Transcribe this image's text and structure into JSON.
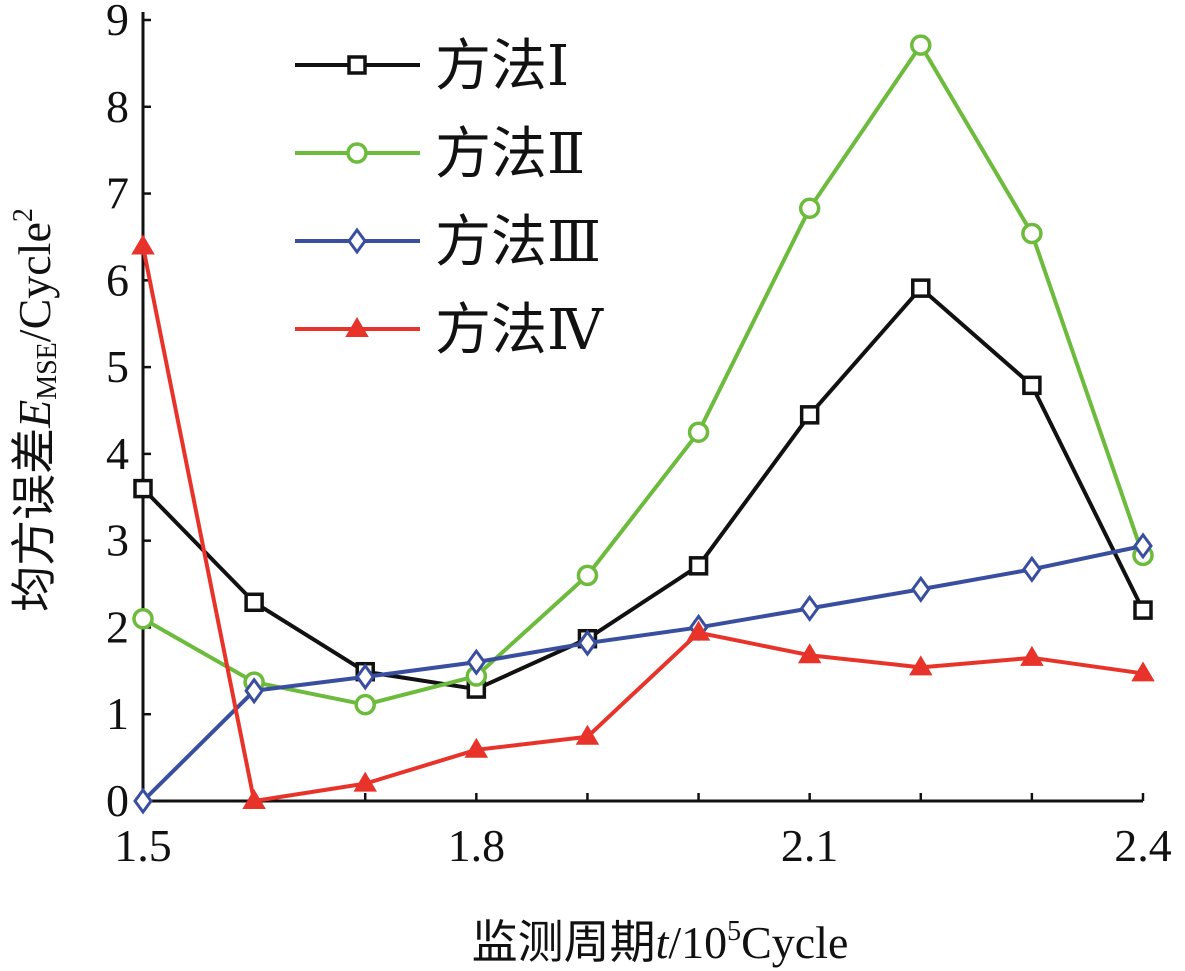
{
  "chart_data": {
    "type": "line",
    "title": "",
    "xlabel": {
      "prefix": "监测周期",
      "var": "t",
      "sep": "/10",
      "sup": "5",
      "unit": "Cycle"
    },
    "ylabel": {
      "prefix": "均方误差",
      "var": "E",
      "sub": "MSE",
      "unit": "/Cycle",
      "sup": "2"
    },
    "xlim": [
      1.5,
      2.4
    ],
    "ylim": [
      0,
      9
    ],
    "x_ticks": [
      "1.5",
      "1.8",
      "2.1",
      "2.4"
    ],
    "x_tick_values": [
      1.5,
      1.8,
      2.1,
      2.4
    ],
    "y_ticks": [
      "0",
      "1",
      "2",
      "3",
      "4",
      "5",
      "6",
      "7",
      "8",
      "9"
    ],
    "grid": false,
    "legend_position": "top-left",
    "x": [
      1.5,
      1.6,
      1.7,
      1.8,
      1.9,
      2.0,
      2.1,
      2.2,
      2.3,
      2.4
    ],
    "series": [
      {
        "name": "方法Ⅰ",
        "color": "#111111",
        "marker": "square",
        "values": [
          3.6,
          2.29,
          1.49,
          1.29,
          1.87,
          2.71,
          4.45,
          5.91,
          4.79,
          2.2
        ]
      },
      {
        "name": "方法Ⅱ",
        "color": "#6dbb3c",
        "marker": "circle",
        "values": [
          2.1,
          1.37,
          1.11,
          1.44,
          2.6,
          4.25,
          6.83,
          8.71,
          6.54,
          2.83
        ]
      },
      {
        "name": "方法Ⅲ",
        "color": "#3a4ea0",
        "marker": "diamond",
        "values": [
          0.0,
          1.27,
          1.43,
          1.6,
          1.82,
          2.0,
          2.22,
          2.44,
          2.67,
          2.94
        ]
      },
      {
        "name": "方法Ⅳ",
        "color": "#e8332a",
        "marker": "triangle",
        "values": [
          6.39,
          0.0,
          0.2,
          0.59,
          0.74,
          1.94,
          1.68,
          1.54,
          1.65,
          1.47
        ]
      }
    ]
  }
}
